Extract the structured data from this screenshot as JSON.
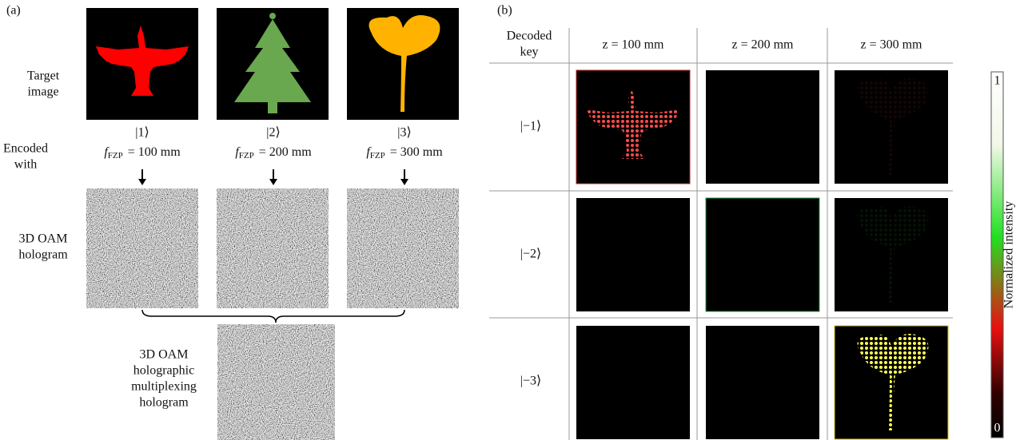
{
  "panel_a": {
    "label": "(a)",
    "target_label": [
      "Target",
      "image"
    ],
    "encoded_label": [
      "Encoded",
      "with"
    ],
    "hologram_label": [
      "3D OAM",
      "hologram"
    ],
    "keys": [
      "|1⟩",
      "|2⟩",
      "|3⟩"
    ],
    "focal": [
      {
        "symbol": "f",
        "subscript": "FZP",
        "value": "= 100 mm"
      },
      {
        "symbol": "f",
        "subscript": "FZP",
        "value": "= 200 mm"
      },
      {
        "symbol": "f",
        "subscript": "FZP",
        "value": "= 300 mm"
      }
    ],
    "multiplex_label": [
      "3D OAM",
      "holographic",
      "multiplexing",
      "hologram"
    ]
  },
  "panel_b": {
    "label": "(b)",
    "corner": [
      "Decoded",
      "key"
    ],
    "columns": [
      "z = 100 mm",
      "z = 200 mm",
      "z = 300 mm"
    ],
    "rows": [
      "|−1⟩",
      "|−2⟩",
      "|−3⟩"
    ],
    "colorbar": {
      "max": 1,
      "min": 0,
      "label": "Normalized intensity"
    }
  }
}
